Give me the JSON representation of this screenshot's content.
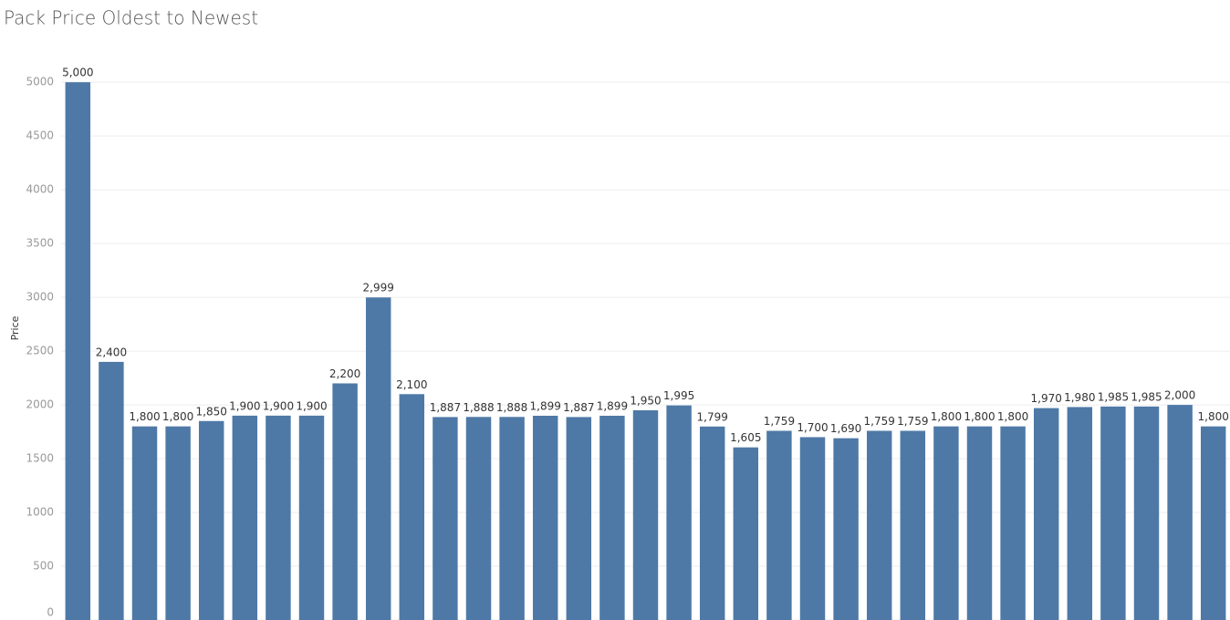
{
  "chart_data": {
    "type": "bar",
    "title": "Pack Price Oldest to Newest",
    "y_label": "Price",
    "categories": [
      null,
      null,
      null,
      null,
      null,
      null,
      null,
      null,
      null,
      null,
      null,
      null,
      null,
      null,
      null,
      null,
      null,
      null,
      null,
      null,
      null,
      null,
      null,
      null,
      null,
      null,
      null,
      null,
      null,
      null,
      null,
      null,
      null,
      null,
      null
    ],
    "values": [
      5000,
      2400,
      1800,
      1800,
      1850,
      1900,
      1900,
      1900,
      2200,
      2999,
      2100,
      1887,
      1888,
      1888,
      1899,
      1887,
      1899,
      1950,
      1995,
      1799,
      1605,
      1759,
      1700,
      1690,
      1759,
      1759,
      1800,
      1800,
      1800,
      1970,
      1980,
      1985,
      1985,
      2000,
      1800
    ],
    "value_labels": [
      "5,000",
      "2,400",
      "1,800",
      "1,800",
      "1,850",
      "1,900",
      "1,900",
      "1,900",
      "2,200",
      "2,999",
      "2,100",
      "1,887",
      "1,888",
      "1,888",
      "1,899",
      "1,887",
      "1,899",
      "1,950",
      "1,995",
      "1,799",
      "1,605",
      "1,759",
      "1,700",
      "1,690",
      "1,759",
      "1,759",
      "1,800",
      "1,800",
      "1,800",
      "1,970",
      "1,980",
      "1,985",
      "1,985",
      "2,000",
      "1,800"
    ],
    "color": "#4e79a7",
    "ylim": [
      0,
      5400
    ],
    "yticks": [
      0,
      500,
      1000,
      1500,
      2000,
      2500,
      3000,
      3500,
      4000,
      4500,
      5000
    ],
    "grid": true
  }
}
